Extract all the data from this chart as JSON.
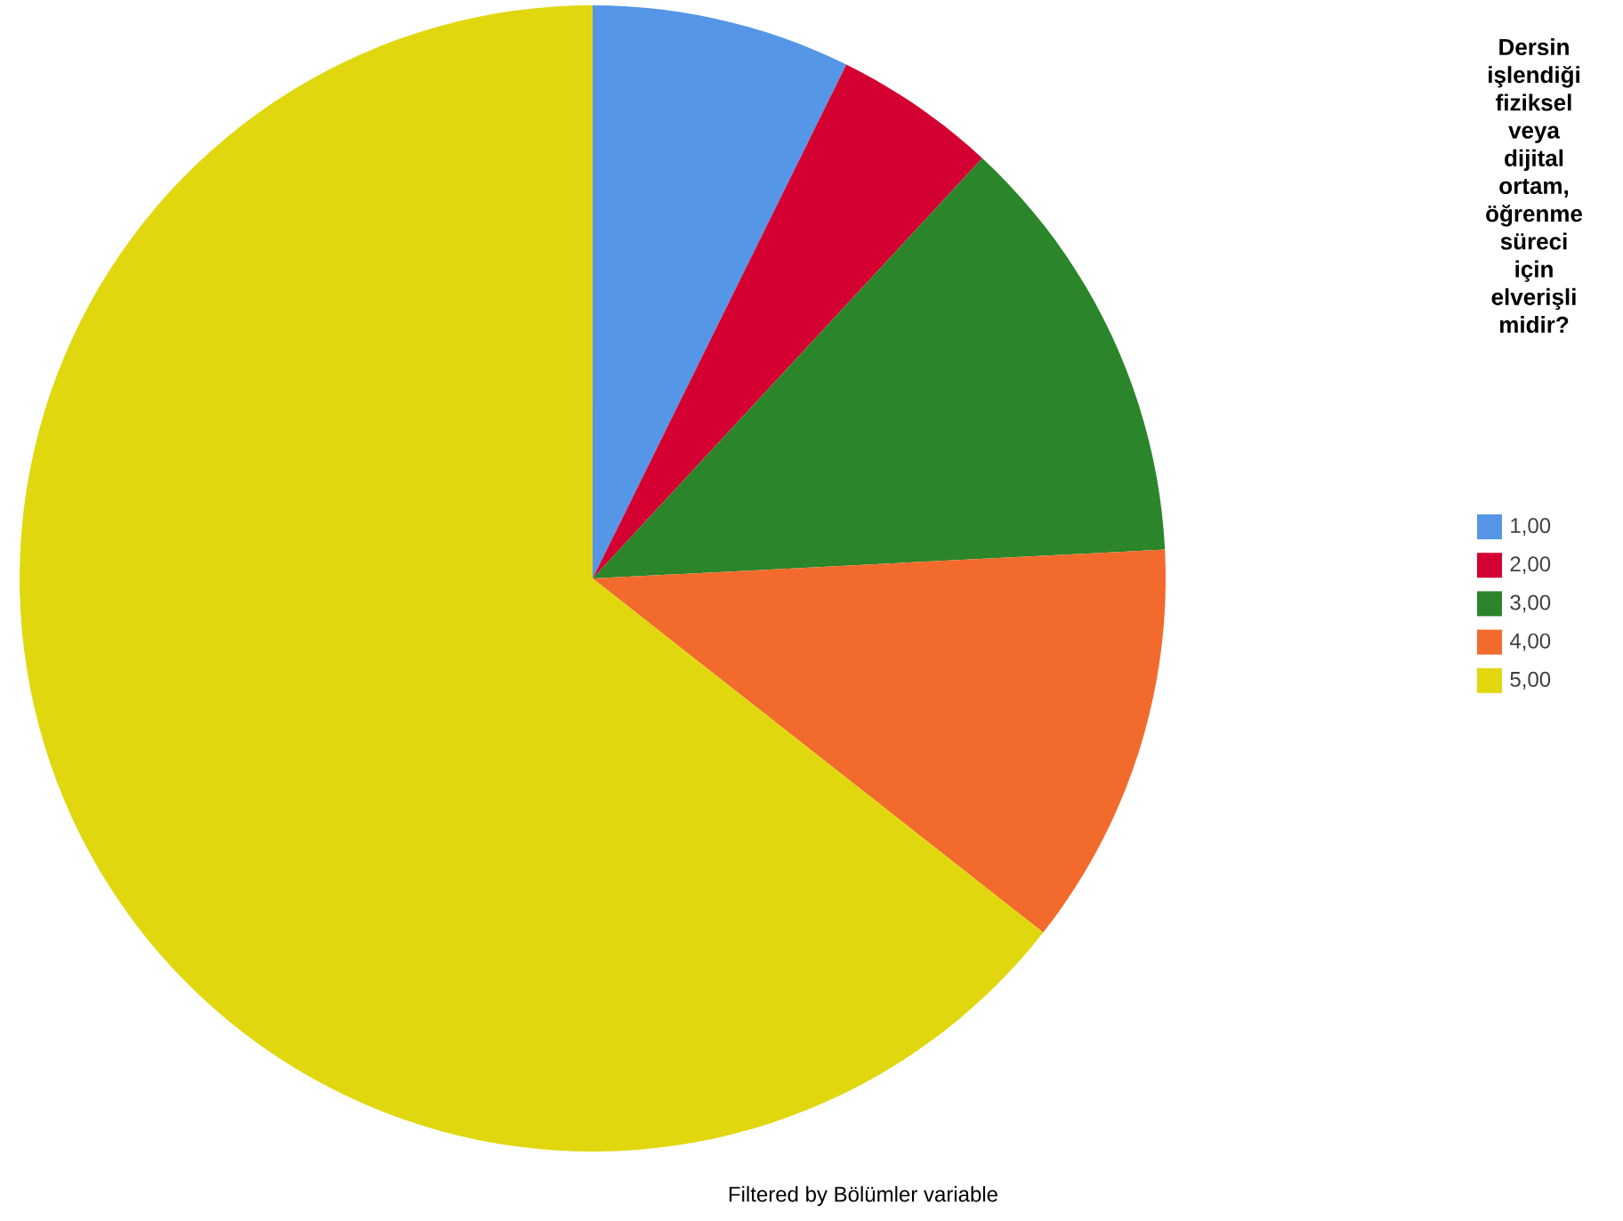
{
  "chart_data": {
    "type": "pie",
    "legend_title": "Dersin işlendiği fiziksel veya dijital ortam, öğrenme süreci için elverişli midir?",
    "categories": [
      "1,00",
      "2,00",
      "3,00",
      "4,00",
      "5,00"
    ],
    "values": [
      7.3,
      4.6,
      12.3,
      11.4,
      64.4
    ],
    "colors": [
      "#5597e6",
      "#d50032",
      "#2b852a",
      "#f26b2c",
      "#e1d70f"
    ],
    "legend": "right",
    "annotations": [
      "Filtered by Bölümler variable"
    ]
  }
}
